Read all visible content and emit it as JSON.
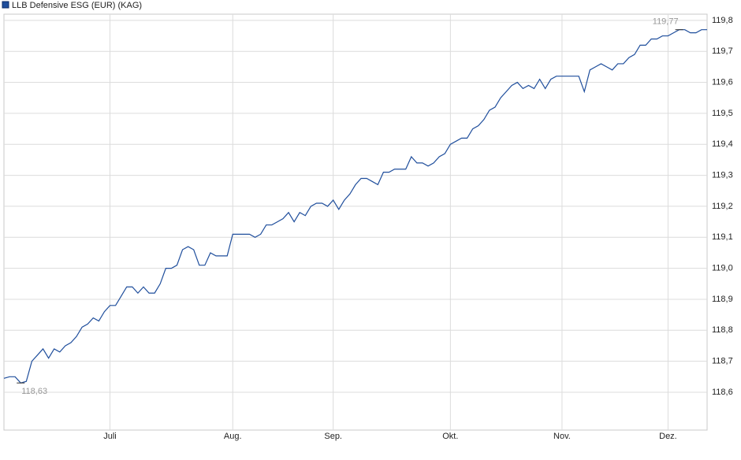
{
  "chart_data": {
    "type": "line",
    "series": [
      {
        "name": "LLB Defensive ESG (EUR) (KAG)",
        "color": "#1f4e9c",
        "values": [
          118.645,
          118.65,
          118.65,
          118.63,
          118.635,
          118.7,
          118.72,
          118.74,
          118.71,
          118.74,
          118.73,
          118.75,
          118.76,
          118.78,
          118.81,
          118.82,
          118.84,
          118.83,
          118.86,
          118.88,
          118.88,
          118.91,
          118.94,
          118.94,
          118.92,
          118.94,
          118.92,
          118.92,
          118.95,
          119.0,
          119.0,
          119.01,
          119.06,
          119.07,
          119.06,
          119.01,
          119.01,
          119.05,
          119.04,
          119.04,
          119.04,
          119.11,
          119.11,
          119.11,
          119.11,
          119.1,
          119.11,
          119.14,
          119.14,
          119.15,
          119.16,
          119.18,
          119.15,
          119.18,
          119.17,
          119.2,
          119.21,
          119.21,
          119.2,
          119.22,
          119.19,
          119.22,
          119.24,
          119.27,
          119.29,
          119.29,
          119.28,
          119.27,
          119.31,
          119.31,
          119.32,
          119.32,
          119.32,
          119.36,
          119.34,
          119.34,
          119.33,
          119.34,
          119.36,
          119.37,
          119.4,
          119.41,
          119.42,
          119.42,
          119.45,
          119.46,
          119.48,
          119.51,
          119.52,
          119.55,
          119.57,
          119.59,
          119.6,
          119.58,
          119.59,
          119.58,
          119.61,
          119.58,
          119.61,
          119.62,
          119.62,
          119.62,
          119.62,
          119.62,
          119.57,
          119.64,
          119.65,
          119.66,
          119.65,
          119.64,
          119.66,
          119.66,
          119.68,
          119.69,
          119.72,
          119.72,
          119.74,
          119.74,
          119.75,
          119.75,
          119.76,
          119.77,
          119.77,
          119.76,
          119.76,
          119.77,
          119.77
        ]
      }
    ],
    "ylim": [
      118.478,
      119.82
    ],
    "yticks": [
      {
        "value": 118.6,
        "label": "118,6"
      },
      {
        "value": 118.7,
        "label": "118,7"
      },
      {
        "value": 118.8,
        "label": "118,8"
      },
      {
        "value": 118.9,
        "label": "118,9"
      },
      {
        "value": 119.0,
        "label": "119,0"
      },
      {
        "value": 119.1,
        "label": "119,1"
      },
      {
        "value": 119.2,
        "label": "119,2"
      },
      {
        "value": 119.3,
        "label": "119,3"
      },
      {
        "value": 119.4,
        "label": "119,4"
      },
      {
        "value": 119.5,
        "label": "119,5"
      },
      {
        "value": 119.6,
        "label": "119,6"
      },
      {
        "value": 119.7,
        "label": "119,7"
      },
      {
        "value": 119.8,
        "label": "119,8"
      }
    ],
    "xlim": [
      0,
      126
    ],
    "xticks": [
      {
        "value": 19,
        "label": "Juli"
      },
      {
        "value": 41,
        "label": "Aug."
      },
      {
        "value": 59,
        "label": "Sep."
      },
      {
        "value": 80,
        "label": "Okt."
      },
      {
        "value": 100,
        "label": "Nov."
      },
      {
        "value": 119,
        "label": "Dez."
      }
    ],
    "annotations": [
      {
        "x": 3,
        "value": 118.63,
        "label": "118,63"
      },
      {
        "x": 121,
        "value": 119.77,
        "label": "119,77"
      }
    ],
    "grid": true
  }
}
